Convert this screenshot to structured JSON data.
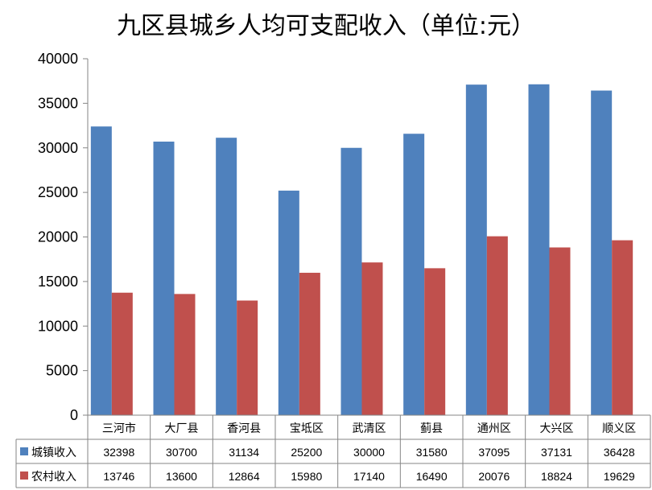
{
  "chart_data": {
    "type": "bar",
    "title": "九区县城乡人均可支配收入（单位:元）",
    "categories": [
      "三河市",
      "大厂县",
      "香河县",
      "宝坻区",
      "武清区",
      "蓟县",
      "通州区",
      "大兴区",
      "顺义区"
    ],
    "series": [
      {
        "name": "城镇收入",
        "color": "#4F81BD",
        "values": [
          32398,
          30700,
          31134,
          25200,
          30000,
          31580,
          37095,
          37131,
          36428
        ]
      },
      {
        "name": "农村收入",
        "color": "#C0504D",
        "values": [
          13746,
          13600,
          12864,
          15980,
          17140,
          16490,
          20076,
          18824,
          19629
        ]
      }
    ],
    "ylim": [
      0,
      40000
    ],
    "yticks": [
      0,
      5000,
      10000,
      15000,
      20000,
      25000,
      30000,
      35000,
      40000
    ],
    "grid": false,
    "legend": "data-table",
    "xlabel": "",
    "ylabel": ""
  }
}
